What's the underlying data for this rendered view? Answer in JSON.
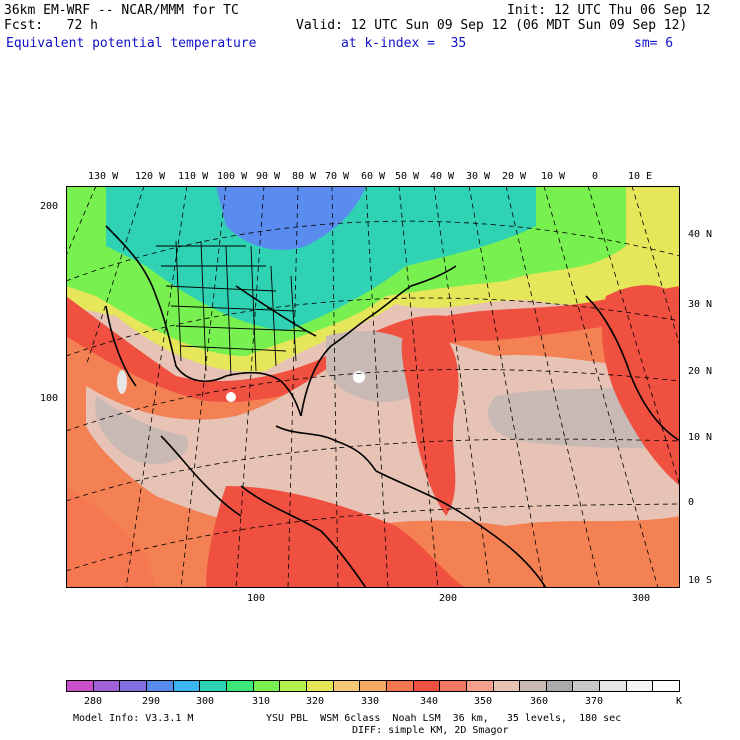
{
  "header": {
    "model": "36km EM-WRF -- NCAR/MMM for TC",
    "init": "Init: 12 UTC Thu 06 Sep 12",
    "fcst": "Fcst:   72 h",
    "valid": "Valid: 12 UTC Sun 09 Sep 12 (06 MDT Sun 09 Sep 12)",
    "field": "Equivalent potential temperature",
    "level": "at k-index =  35",
    "smoothing": "sm= 6"
  },
  "map": {
    "top_lon_labels": [
      "130 W",
      "120 W",
      "110 W",
      "100 W",
      "90 W",
      "80 W",
      "70 W",
      "60 W",
      "50 W",
      "40 W",
      "30 W",
      "20 W",
      "10 W",
      "0",
      "10 E"
    ],
    "right_lat_labels": [
      "40 N",
      "30 N",
      "20 N",
      "10 N",
      "0",
      "10 S"
    ],
    "left_grid_labels": [
      "200",
      "100"
    ],
    "bottom_grid_labels": [
      "100",
      "200",
      "300"
    ]
  },
  "legend": {
    "colors": [
      "#c850c8",
      "#a060d8",
      "#8070e0",
      "#5a8cf0",
      "#3cb4f0",
      "#30d2b4",
      "#3ce678",
      "#78f050",
      "#b4f050",
      "#e6e65a",
      "#f5c878",
      "#f5aa64",
      "#f57850",
      "#f05040",
      "#f07864",
      "#f5a08c",
      "#e6c3b4",
      "#c8b9b4",
      "#aaaaaa",
      "#c8c8c8",
      "#e6e6e6",
      "#f5f5f5",
      "#ffffff"
    ],
    "labels": [
      "280",
      "290",
      "300",
      "310",
      "320",
      "330",
      "340",
      "350",
      "360",
      "370"
    ],
    "unit": "K"
  },
  "footer": {
    "info": "Model Info: V3.3.1 M",
    "physics": "YSU PBL  WSM 6class  Noah LSM  36 km,   35 levels,  180 sec",
    "dynamics": "DIFF: simple KM, 2D Smagor"
  }
}
